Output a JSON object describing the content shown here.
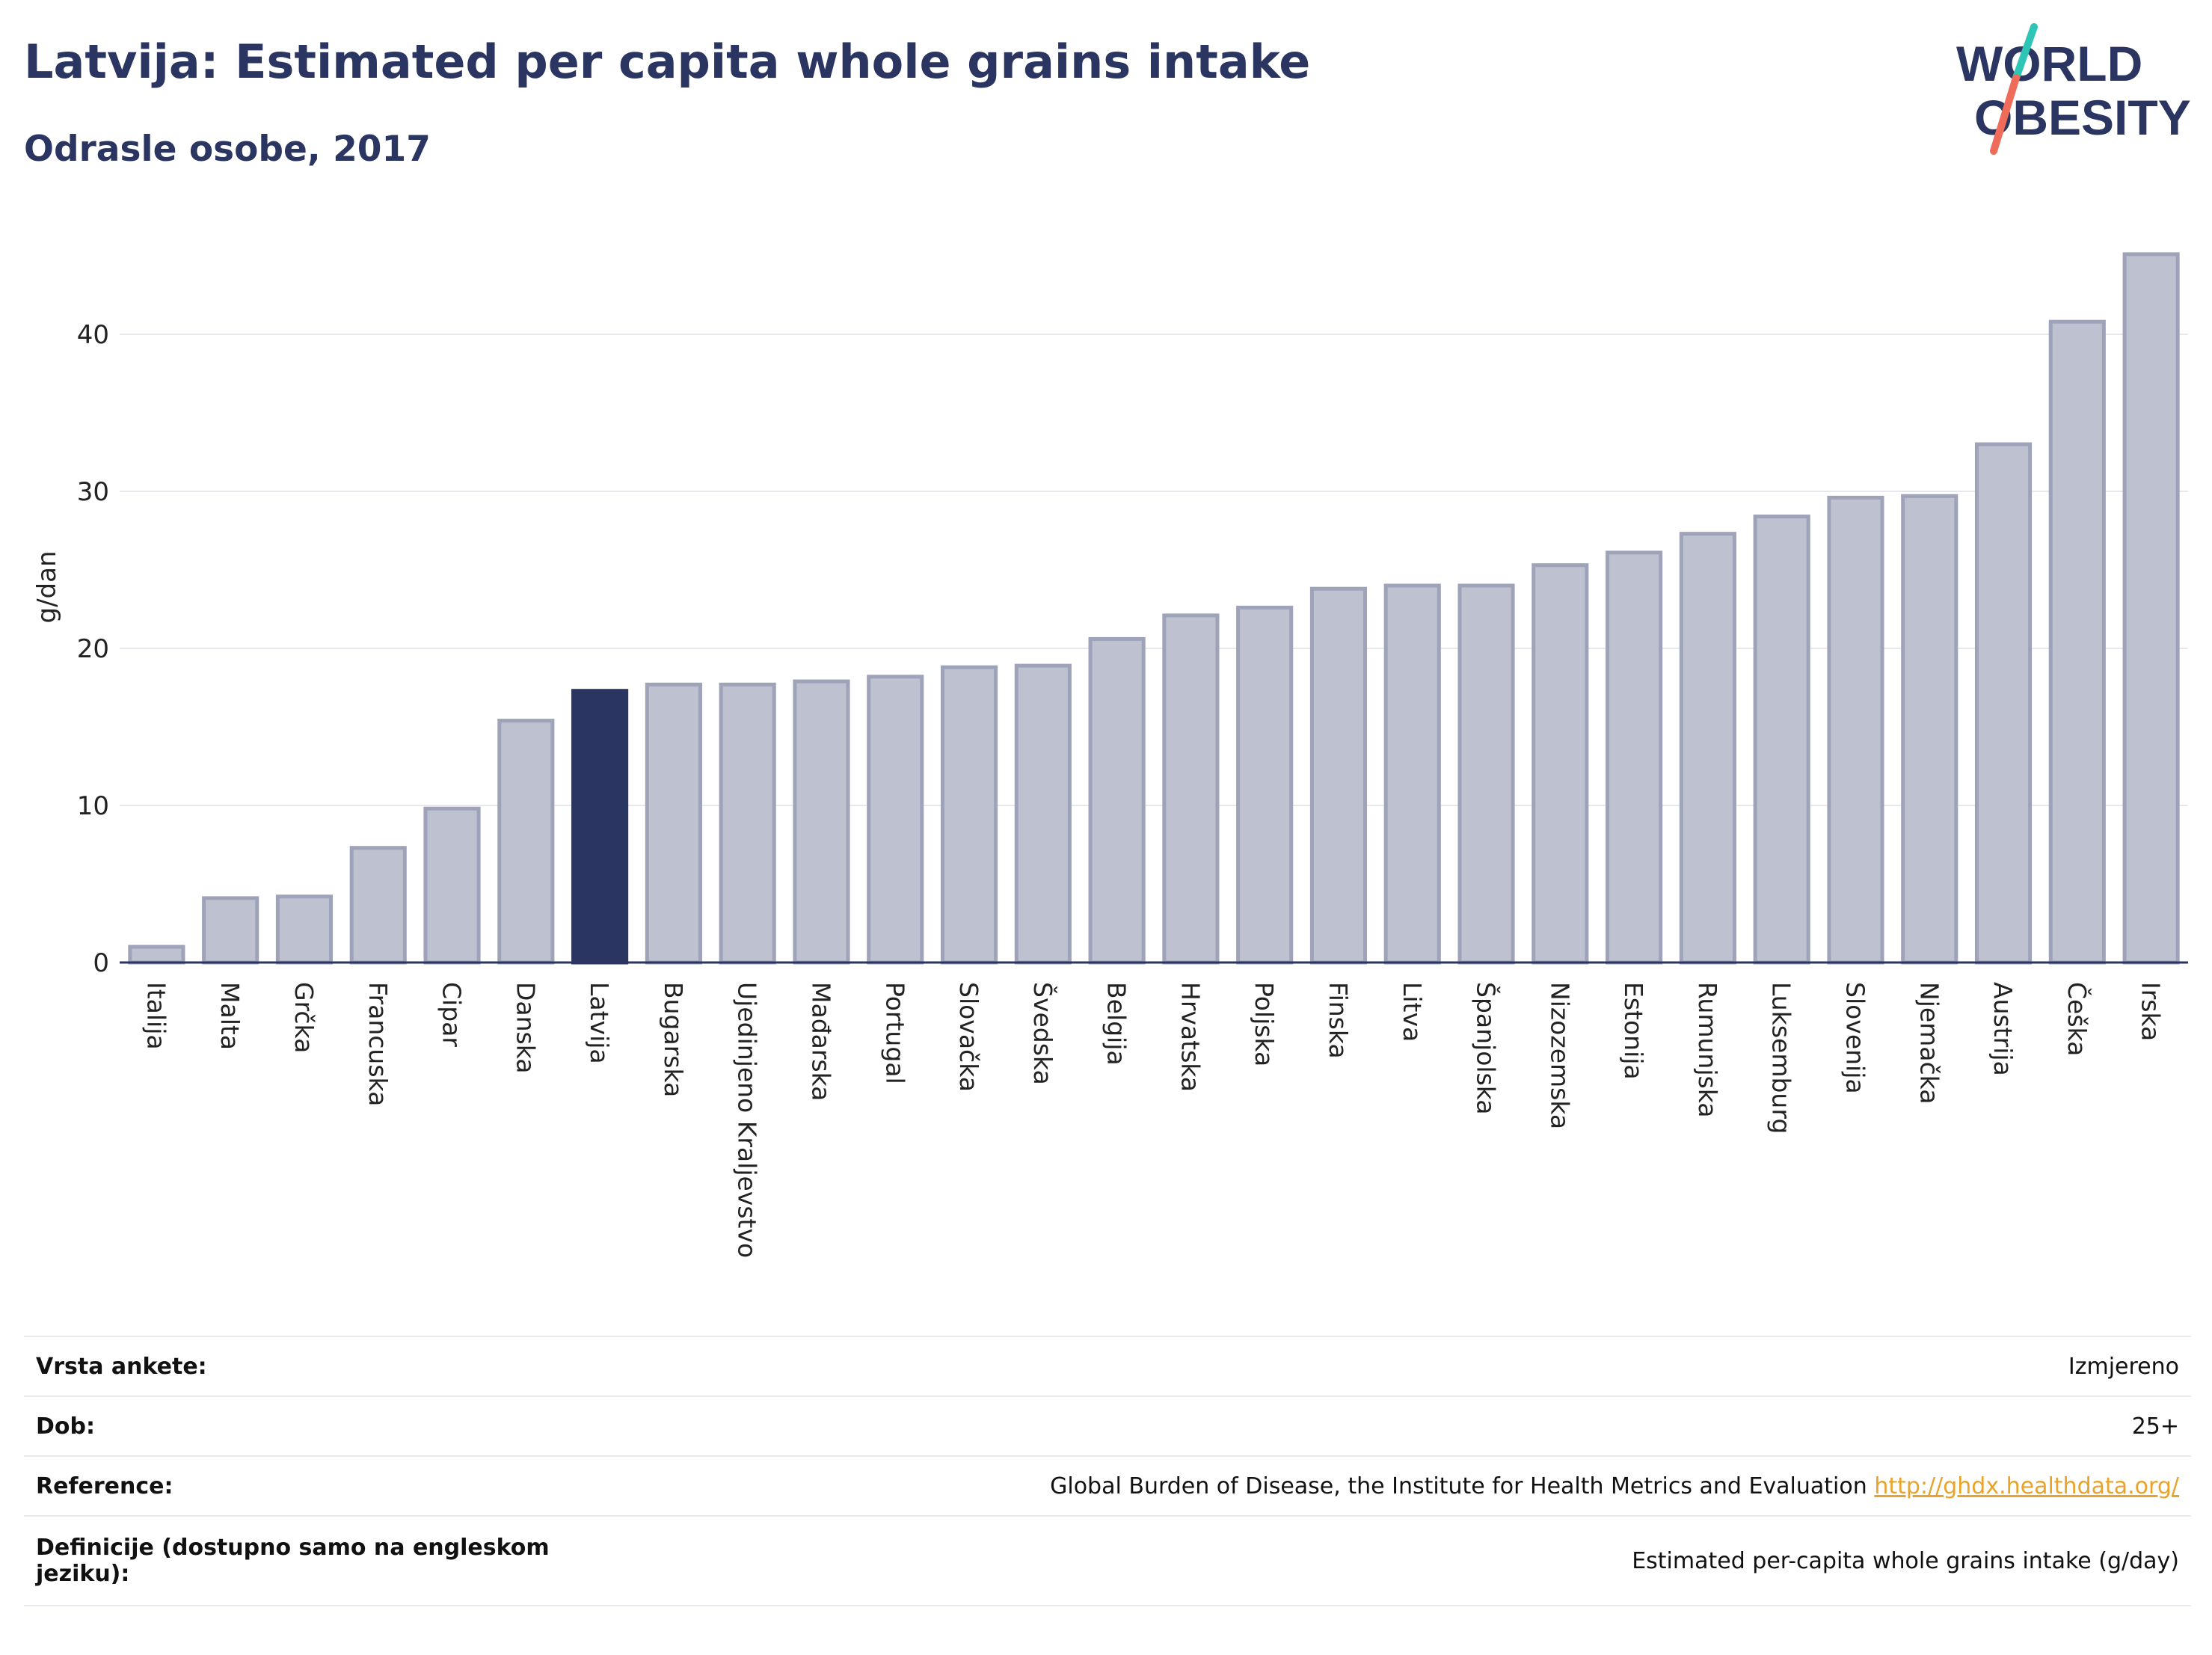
{
  "header": {
    "title": "Latvija: Estimated per capita whole grains intake",
    "subtitle": "Odrasle osobe, 2017"
  },
  "logo": {
    "line1": "WORLD",
    "line2": "OBESITY",
    "accent_colors": [
      "#2ec4b6",
      "#ef6b5a"
    ]
  },
  "chart_data": {
    "type": "bar",
    "ylabel": "g/dan",
    "ylim": [
      0,
      47
    ],
    "yticks": [
      0,
      10,
      20,
      30,
      40
    ],
    "grid": true,
    "highlight_category": "Latvija",
    "colors": {
      "bar": "#bec1cf",
      "bar_border": "#9ea3b9",
      "highlight": "#2b3561"
    },
    "categories": [
      "Italija",
      "Malta",
      "Grčka",
      "Francuska",
      "Cipar",
      "Danska",
      "Latvija",
      "Bugarska",
      "Ujedinjeno Kraljevstvo",
      "Mađarska",
      "Portugal",
      "Slovačka",
      "Švedska",
      "Belgija",
      "Hrvatska",
      "Poljska",
      "Finska",
      "Litva",
      "Španjolska",
      "Nizozemska",
      "Estonija",
      "Rumunjska",
      "Luksemburg",
      "Slovenija",
      "Njemačka",
      "Austrija",
      "Češka",
      "Irska"
    ],
    "values": [
      1.0,
      4.1,
      4.2,
      7.3,
      9.8,
      15.4,
      17.3,
      17.7,
      17.7,
      17.9,
      18.2,
      18.8,
      18.9,
      20.6,
      22.1,
      22.6,
      23.8,
      24.0,
      24.0,
      25.3,
      26.1,
      27.3,
      28.4,
      29.6,
      29.7,
      33.0,
      40.8,
      45.1
    ]
  },
  "info": {
    "rows": [
      {
        "key": "Vrsta ankete:",
        "value": "Izmjereno"
      },
      {
        "key": "Dob:",
        "value": "25+"
      },
      {
        "key": "Reference:",
        "value": "Global Burden of Disease, the Institute for Health Metrics and Evaluation",
        "link": "http://ghdx.healthdata.org/"
      },
      {
        "key": "Definicije (dostupno samo na engleskom jeziku):",
        "value": "Estimated per-capita whole grains intake (g/day)"
      }
    ]
  }
}
